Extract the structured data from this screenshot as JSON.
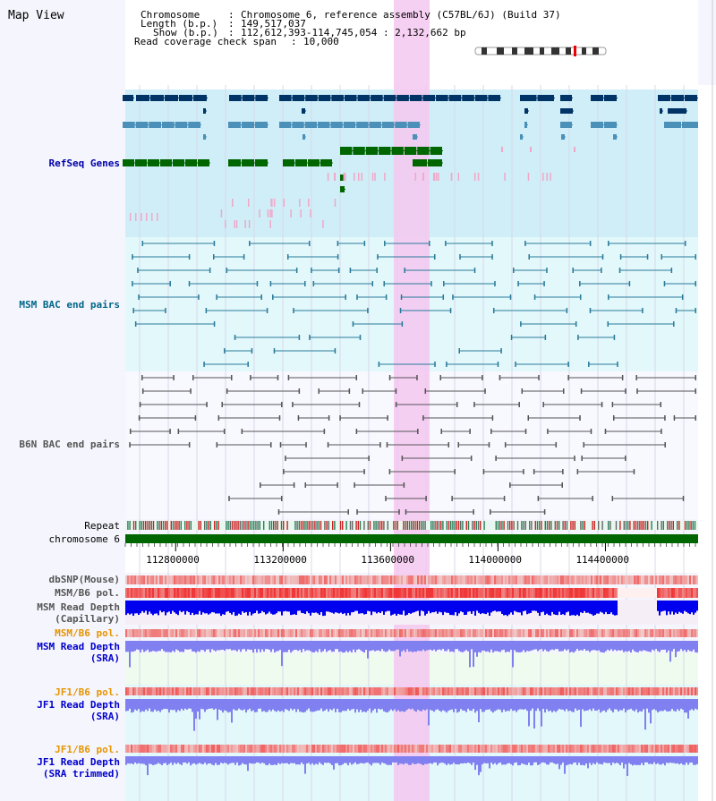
{
  "app": {
    "title": "Map View"
  },
  "info": {
    "chromosome_key": "Chromosome",
    "chromosome_val": "Chromosome 6, reference assembly (C57BL/6J) (Build 37)",
    "length_key": "Length (b.p.)",
    "length_val": "149,517,037",
    "show_key": "Show (b.p.)",
    "show_val": "112,612,393-114,745,054 : 2,132,662 bp",
    "coverage_key": "Read coverage check span",
    "coverage_val": "10,000"
  },
  "tracks": {
    "refseq": "RefSeq Genes",
    "msm_bac": "MSM BAC end pairs",
    "b6n_bac": "B6N BAC end pairs",
    "repeat": "Repeat",
    "chromosome": "chromosome 6",
    "dbsnp": "dbSNP(Mouse)",
    "msm_pol1": "MSM/B6 pol.",
    "msm_depth_cap_1": "MSM Read Depth",
    "msm_depth_cap_2": "(Capillary)",
    "msm_pol2": "MSM/B6 pol.",
    "msm_depth_sra_1": "MSM Read Depth",
    "msm_depth_sra_2": "(SRA)",
    "jf1_pol1": "JF1/B6 pol.",
    "jf1_depth_sra_1": "JF1 Read Depth",
    "jf1_depth_sra_2": "(SRA)",
    "jf1_pol2": "JF1/B6 pol.",
    "jf1_depth_trim_1": "JF1 Read Depth",
    "jf1_depth_trim_2": "(SRA trimmed)"
  },
  "axis": {
    "ticks": [
      {
        "value": 112800000,
        "label": "112800000"
      },
      {
        "value": 113200000,
        "label": "113200000"
      },
      {
        "value": 113600000,
        "label": "113600000"
      },
      {
        "value": 114000000,
        "label": "114000000"
      },
      {
        "value": 114400000,
        "label": "114400000"
      }
    ],
    "range": [
      112612393,
      114745054
    ],
    "highlight": [
      113590000,
      113720000
    ]
  },
  "colors": {
    "refseq_bg": "#cfeef8",
    "msm_bg": "#e2f8fb",
    "gene_dark": "#003366",
    "gene_mid": "#4a90b8",
    "gene_green": "#006600",
    "snp_pink": "#f0a8c8",
    "bac_msm": "#2a7a99",
    "bac_b6n": "#555555",
    "highlight": "#f5c8f0",
    "depth_blue": "#0000ee",
    "depth_light": "#8080f0",
    "pol_red": "#e83a3a"
  }
}
